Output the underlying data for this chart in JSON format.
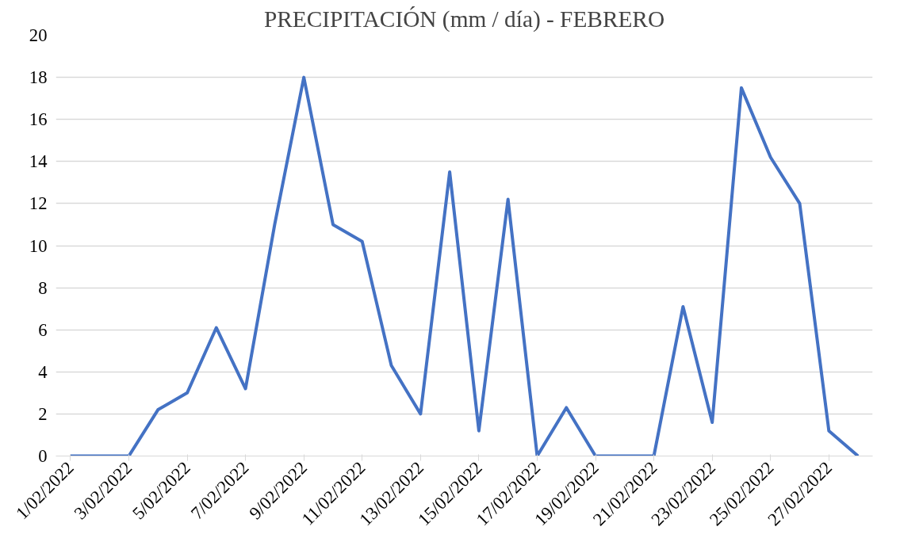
{
  "chart_data": {
    "type": "line",
    "title": "PRECIPITACIÓN (mm / día) - FEBRERO",
    "categories": [
      "1/02/2022",
      null,
      "3/02/2022",
      null,
      "5/02/2022",
      null,
      "7/02/2022",
      null,
      "9/02/2022",
      null,
      "11/02/2022",
      null,
      "13/02/2022",
      null,
      "15/02/2022",
      null,
      "17/02/2022",
      null,
      "19/02/2022",
      null,
      "21/02/2022",
      null,
      "23/02/2022",
      null,
      "25/02/2022",
      null,
      "27/02/2022",
      null
    ],
    "series": [
      {
        "color": "#4472c4",
        "values": [
          0,
          0,
          0,
          2.2,
          3,
          6.1,
          3.2,
          11,
          18,
          11,
          10.2,
          4.3,
          2,
          13.5,
          1.2,
          12.2,
          0,
          2.3,
          0,
          0,
          0,
          7.1,
          1.6,
          17.5,
          14.2,
          12,
          1.2,
          0
        ]
      }
    ],
    "ylim": [
      0,
      20
    ],
    "yticks": [
      0,
      2,
      4,
      6,
      8,
      10,
      12,
      14,
      16,
      18,
      20
    ],
    "grid": "y"
  }
}
